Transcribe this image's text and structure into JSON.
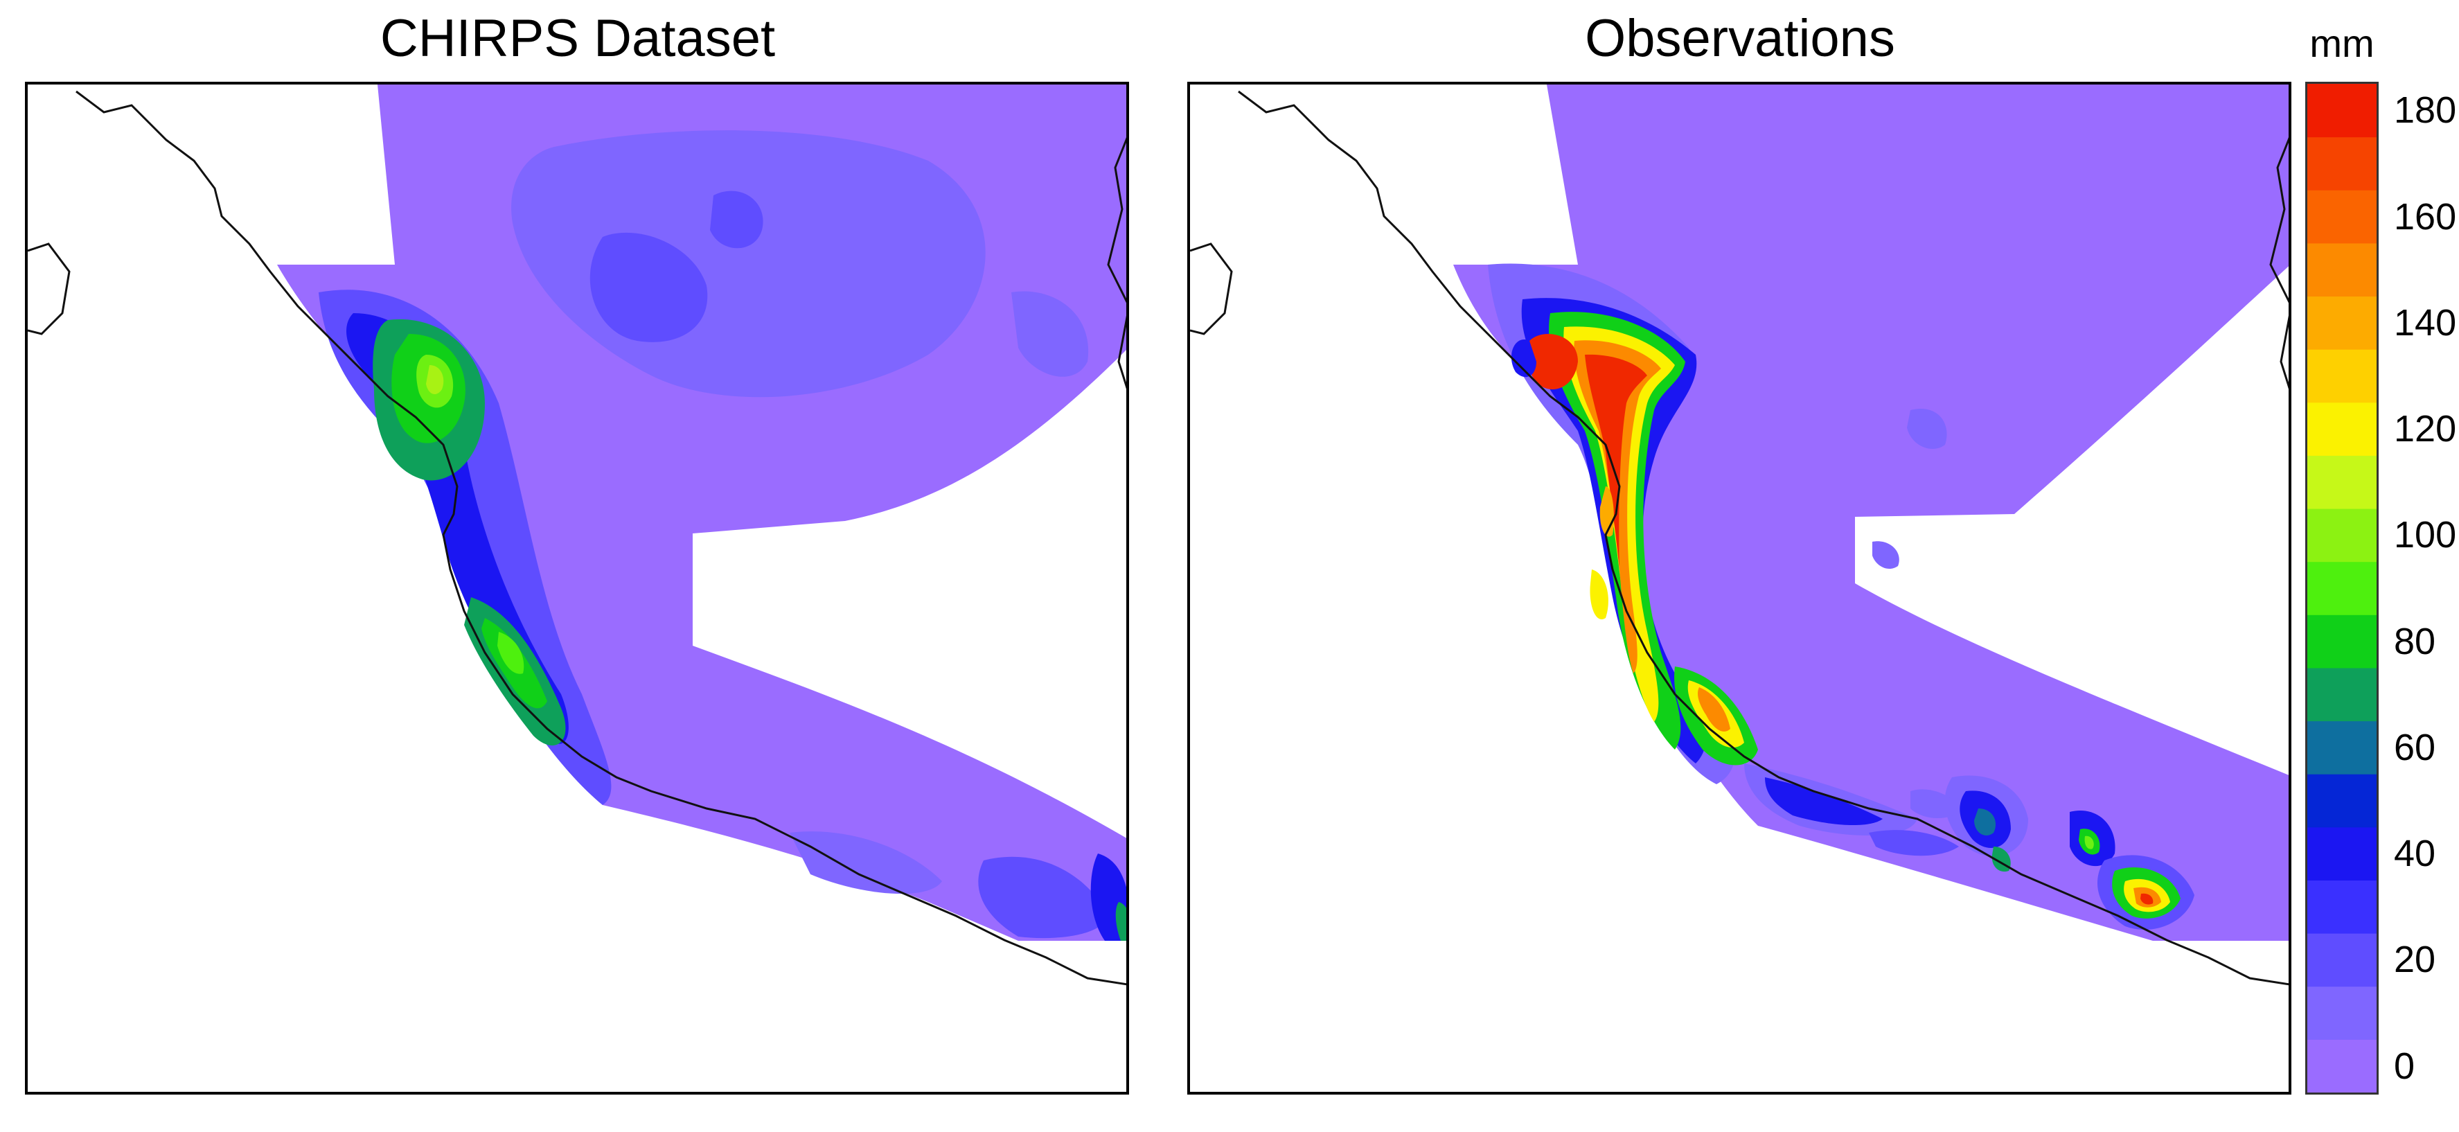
{
  "panels": [
    {
      "title": "CHIRPS Dataset"
    },
    {
      "title": "Observations"
    }
  ],
  "colorbar": {
    "unit": "mm",
    "tick_labels": [
      "0",
      "20",
      "40",
      "60",
      "80",
      "100",
      "120",
      "140",
      "160",
      "180"
    ],
    "tick_values": [
      0,
      20,
      40,
      60,
      80,
      100,
      120,
      140,
      160,
      180
    ],
    "min": 0,
    "max": 190,
    "colors": [
      "#9a6cff",
      "#7f66ff",
      "#5f4dff",
      "#3a30ff",
      "#1b16f2",
      "#0526d6",
      "#0e6f9f",
      "#0ea05a",
      "#10d018",
      "#4ef00e",
      "#8cf212",
      "#c6f818",
      "#fbf200",
      "#fed000",
      "#fdab00",
      "#fc8a00",
      "#fa6400",
      "#f64400",
      "#f01d00"
    ]
  },
  "colors": {
    "background": "#9a6cff",
    "low": "#7f66ff",
    "mid_blue": "#5f4dff",
    "deep_blue": "#1b16f2",
    "green": "#10d018",
    "light_green": "#6cf012",
    "yellow": "#fbf200",
    "orange": "#fc8a00",
    "red": "#f02800",
    "coastline": "#111111"
  }
}
